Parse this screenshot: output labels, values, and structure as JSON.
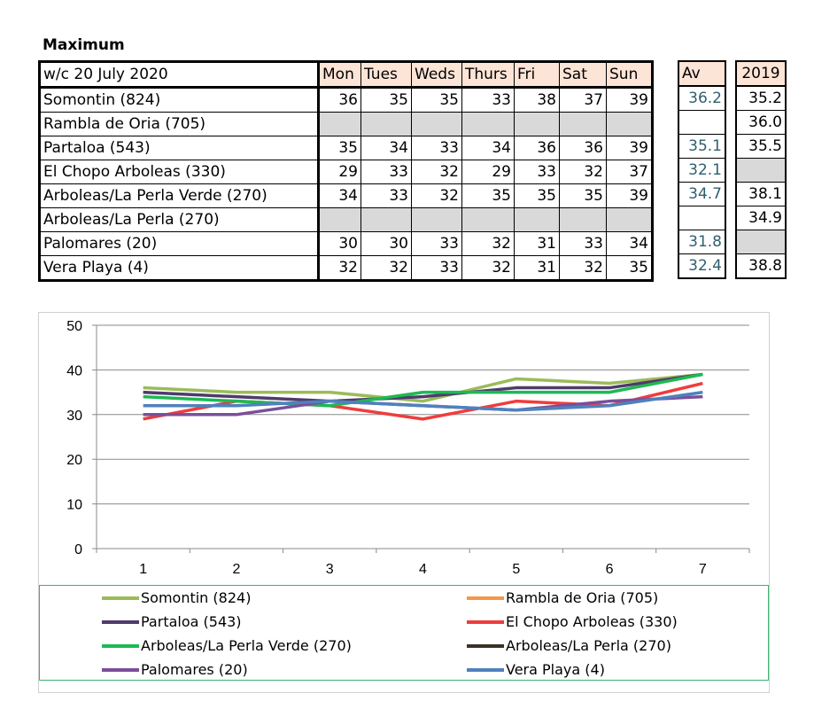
{
  "table": {
    "title": "Maximum",
    "week_label": "w/c  20 July 2020",
    "days": [
      "Mon",
      "Tues",
      "Weds",
      "Thurs",
      "Fri",
      "Sat",
      "Sun"
    ],
    "av_label": "Av",
    "prev_label": "2019",
    "rows": [
      {
        "name": "Somontin (824)",
        "values": [
          "36",
          "35",
          "35",
          "33",
          "38",
          "37",
          "39"
        ],
        "av": "36.2",
        "prev": "35.2"
      },
      {
        "name": "Rambla de Oria (705)",
        "values": [
          "",
          "",
          "",
          "",
          "",
          "",
          ""
        ],
        "av": "",
        "prev": "36.0"
      },
      {
        "name": "Partaloa (543)",
        "values": [
          "35",
          "34",
          "33",
          "34",
          "36",
          "36",
          "39"
        ],
        "av": "35.1",
        "prev": "35.5"
      },
      {
        "name": "El Chopo  Arboleas (330)",
        "values": [
          "29",
          "33",
          "32",
          "29",
          "33",
          "32",
          "37"
        ],
        "av": "32.1",
        "prev": ""
      },
      {
        "name": "Arboleas/La Perla Verde (270)",
        "values": [
          "34",
          "33",
          "32",
          "35",
          "35",
          "35",
          "39"
        ],
        "av": "34.7",
        "prev": "38.1"
      },
      {
        "name": "Arboleas/La Perla (270)",
        "values": [
          "",
          "",
          "",
          "",
          "",
          "",
          ""
        ],
        "av": "",
        "prev": "34.9"
      },
      {
        "name": "Palomares (20)",
        "values": [
          "30",
          "30",
          "33",
          "32",
          "31",
          "33",
          "34"
        ],
        "av": "31.8",
        "prev": ""
      },
      {
        "name": "Vera Playa (4)",
        "values": [
          "32",
          "32",
          "33",
          "32",
          "31",
          "32",
          "35"
        ],
        "av": "32.4",
        "prev": "38.8"
      }
    ]
  },
  "chart_data": {
    "type": "line",
    "x": [
      1,
      2,
      3,
      4,
      5,
      6,
      7
    ],
    "x_tick_labels": [
      "1",
      "2",
      "3",
      "4",
      "5",
      "6",
      "7"
    ],
    "ylim": [
      0,
      50
    ],
    "y_ticks": [
      0,
      10,
      20,
      30,
      40,
      50
    ],
    "y_tick_labels": [
      "0",
      "10",
      "20",
      "30",
      "40",
      "50"
    ],
    "grid": true,
    "legend_position": "bottom",
    "series": [
      {
        "name": "Somontin (824)",
        "color": "#9bbb59",
        "values": [
          36,
          35,
          35,
          33,
          38,
          37,
          39
        ]
      },
      {
        "name": "Rambla de Oria (705)",
        "color": "#f79646",
        "values": [
          null,
          null,
          null,
          null,
          null,
          null,
          null
        ]
      },
      {
        "name": "Partaloa (543)",
        "color": "#4f3b6b",
        "values": [
          35,
          34,
          33,
          34,
          36,
          36,
          39
        ]
      },
      {
        "name": "El Chopo  Arboleas (330)",
        "color": "#f03c3c",
        "values": [
          29,
          33,
          32,
          29,
          33,
          32,
          37
        ]
      },
      {
        "name": "Arboleas/La Perla Verde (270)",
        "color": "#1db954",
        "values": [
          34,
          33,
          32,
          35,
          35,
          35,
          39
        ]
      },
      {
        "name": "Arboleas/La Perla (270)",
        "color": "#3a3226",
        "values": [
          null,
          null,
          null,
          null,
          null,
          null,
          null
        ]
      },
      {
        "name": "Palomares (20)",
        "color": "#7a4f9a",
        "values": [
          30,
          30,
          33,
          32,
          31,
          33,
          34
        ]
      },
      {
        "name": "Vera Playa (4)",
        "color": "#4f81bd",
        "values": [
          32,
          32,
          33,
          32,
          31,
          32,
          35
        ]
      }
    ]
  }
}
